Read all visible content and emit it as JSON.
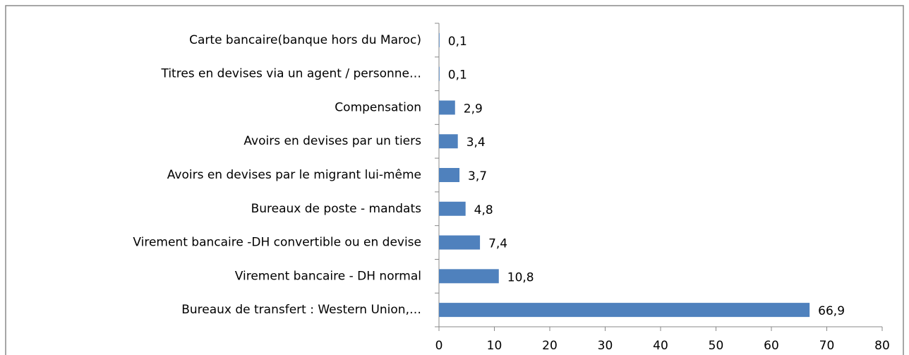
{
  "chart_data": {
    "type": "barh",
    "categories": [
      "Carte bancaire(banque hors du Maroc)",
      "Titres en devises via un agent / personne…",
      "Compensation",
      "Avoirs en devises par un tiers",
      "Avoirs en devises par le migrant lui-même",
      "Bureaux de poste - mandats",
      "Virement bancaire -DH convertible ou en devise",
      "Virement bancaire - DH normal",
      "Bureaux de transfert : Western Union,…"
    ],
    "values": [
      0.1,
      0.1,
      2.9,
      3.4,
      3.7,
      4.8,
      7.4,
      10.8,
      66.9
    ],
    "value_labels": [
      "0,1",
      "0,1",
      "2,9",
      "3,4",
      "3,7",
      "4,8",
      "7,4",
      "10,8",
      "66,9"
    ],
    "color": "#4f81bd",
    "xlim": [
      0,
      80
    ],
    "xticks": [
      0,
      10,
      20,
      30,
      40,
      50,
      60,
      70,
      80
    ]
  }
}
